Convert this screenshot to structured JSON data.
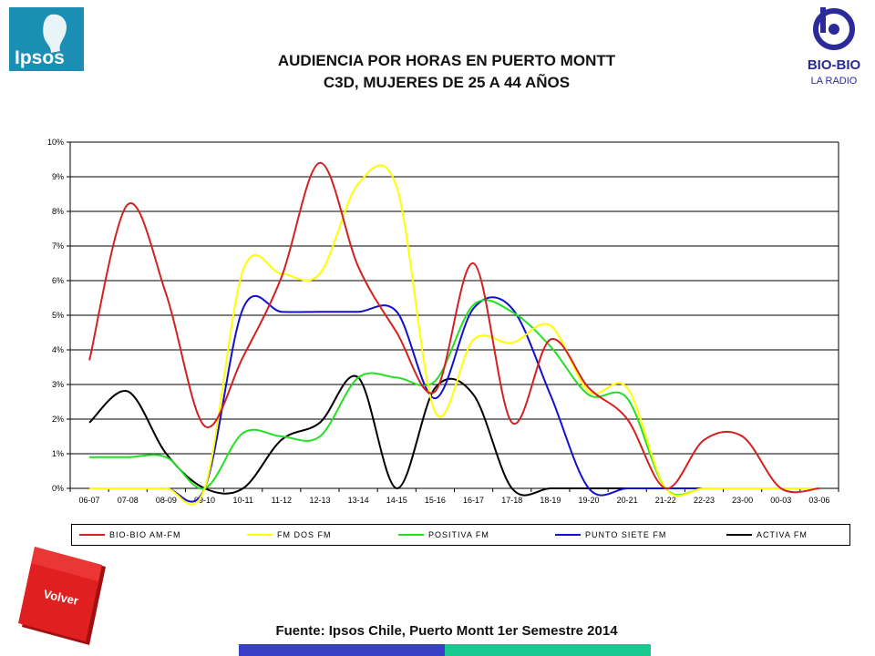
{
  "title": {
    "line1": "AUDIENCIA POR HORAS EN PUERTO MONTT",
    "line2": "C3D, MUJERES DE 25 A 44 AÑOS"
  },
  "logos": {
    "ipsos": "Ipsos",
    "biobio_main": "BIO-BIO",
    "biobio_sub": "LA RADIO"
  },
  "volver_label": "Volver",
  "source": "Fuente: Ipsos Chile, Puerto Montt 1er Semestre 2014",
  "colors": {
    "bar_left": "#3a3fc8",
    "bar_right": "#18c98f",
    "volver": "#e02020"
  },
  "chart_data": {
    "type": "line",
    "categories": [
      "06-07",
      "07-08",
      "08-09",
      "09-10",
      "10-11",
      "11-12",
      "12-13",
      "13-14",
      "14-15",
      "15-16",
      "16-17",
      "17-18",
      "18-19",
      "19-20",
      "20-21",
      "21-22",
      "22-23",
      "23-00",
      "00-03",
      "03-06"
    ],
    "y_tick_labels": [
      "0%",
      "1%",
      "2%",
      "3%",
      "4%",
      "5%",
      "6%",
      "7%",
      "8%",
      "9%",
      "10%"
    ],
    "ylim": [
      0,
      10
    ],
    "grid": true,
    "legend_position": "bottom",
    "series": [
      {
        "name": "BIO-BIO AM-FM",
        "color": "#d42020",
        "values": [
          3.7,
          8.2,
          5.6,
          1.8,
          3.8,
          6.1,
          9.4,
          6.4,
          4.5,
          2.8,
          6.5,
          1.9,
          4.3,
          2.9,
          2.0,
          0.0,
          1.4,
          1.5,
          0.0,
          0.0
        ]
      },
      {
        "name": "FM DOS FM",
        "color": "#ffff00",
        "values": [
          0.0,
          0.0,
          0.0,
          0.0,
          6.3,
          6.2,
          6.2,
          8.8,
          8.7,
          2.2,
          4.3,
          4.2,
          4.7,
          2.8,
          2.9,
          0.0,
          0.0,
          0.0,
          0.0,
          0.0
        ]
      },
      {
        "name": "POSITIVA FM",
        "color": "#22e022",
        "values": [
          0.9,
          0.9,
          0.9,
          0.0,
          1.6,
          1.5,
          1.5,
          3.2,
          3.2,
          3.1,
          5.3,
          5.1,
          4.1,
          2.7,
          2.6,
          0.0,
          0.0,
          0.0,
          0.0,
          0.0
        ]
      },
      {
        "name": "PUNTO SIETE FM",
        "color": "#1010d0",
        "values": [
          0.0,
          0.0,
          0.0,
          0.0,
          5.2,
          5.1,
          5.1,
          5.1,
          5.1,
          2.6,
          5.2,
          5.2,
          2.7,
          0.0,
          0.0,
          0.0,
          0.0,
          0.0,
          0.0,
          0.0
        ]
      },
      {
        "name": "ACTIVA FM",
        "color": "#000000",
        "values": [
          1.9,
          2.8,
          1.0,
          0.0,
          0.0,
          1.4,
          1.9,
          3.2,
          0.0,
          2.9,
          2.7,
          0.0,
          0.0,
          0.0,
          0.0,
          0.0,
          0.0,
          0.0,
          0.0,
          0.0
        ]
      }
    ]
  }
}
